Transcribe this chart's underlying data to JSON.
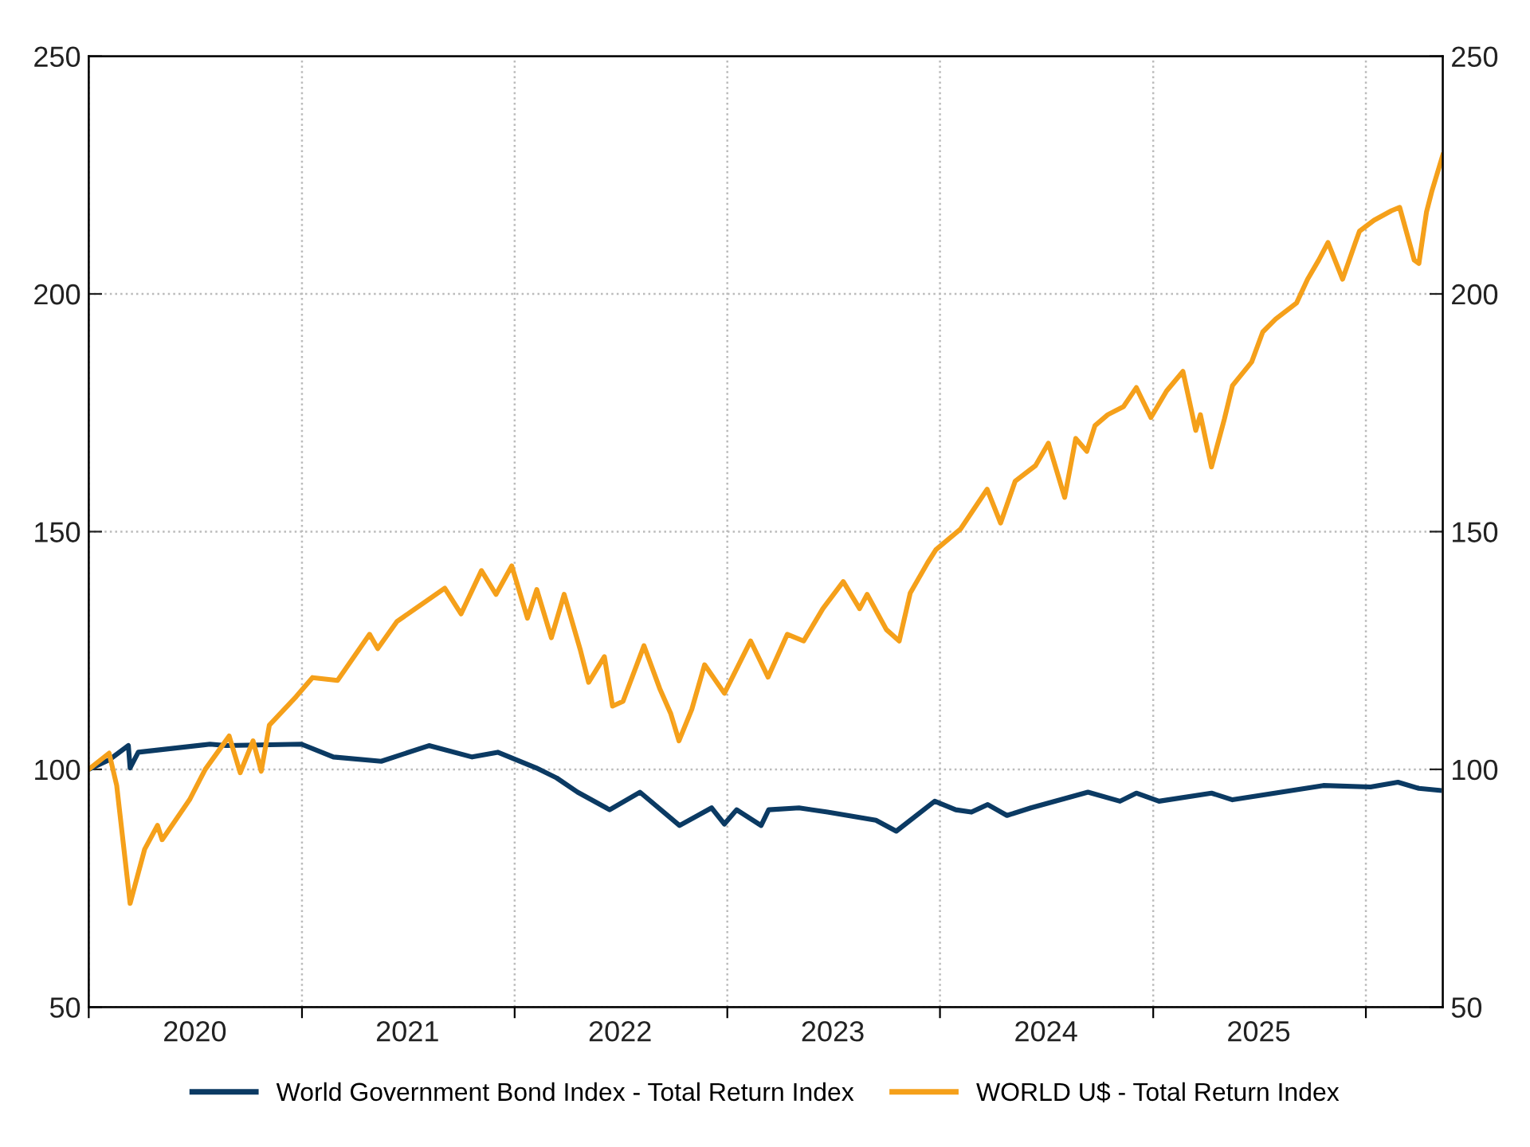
{
  "chart_data": {
    "type": "line",
    "xlim": [
      "2020-01-01",
      "2026-05-13"
    ],
    "xticks": [
      {
        "value": "2020-01-01",
        "label": null
      },
      {
        "value": "2020-07-01",
        "label": "2020"
      },
      {
        "value": "2021-01-01",
        "label": null
      },
      {
        "value": "2021-07-01",
        "label": "2021"
      },
      {
        "value": "2022-01-01",
        "label": null
      },
      {
        "value": "2022-07-01",
        "label": "2022"
      },
      {
        "value": "2023-01-01",
        "label": null
      },
      {
        "value": "2023-07-01",
        "label": "2023"
      },
      {
        "value": "2024-01-01",
        "label": null
      },
      {
        "value": "2024-07-01",
        "label": "2024"
      },
      {
        "value": "2025-01-01",
        "label": null
      },
      {
        "value": "2025-07-01",
        "label": "2025"
      },
      {
        "value": "2026-01-01",
        "label": null
      }
    ],
    "ylim": [
      50,
      250
    ],
    "yticks": [
      50,
      100,
      150,
      200,
      250
    ],
    "y2lim": [
      50,
      250
    ],
    "y2ticks": [
      50,
      100,
      150,
      200,
      250
    ],
    "grid": true,
    "legend": "bottom",
    "line_style": "solid",
    "marker": "none",
    "series": [
      {
        "name": "World Government Bond Index - Total Return Index",
        "color": "#0b3a63",
        "x": [
          "2020-01-01",
          "2020-02-05",
          "2020-03-09",
          "2020-03-12",
          "2020-03-26",
          "2020-07-27",
          "2020-08-24",
          "2020-12-31",
          "2021-02-24",
          "2021-05-17",
          "2021-08-07",
          "2021-10-20",
          "2021-12-03",
          "2022-02-07",
          "2022-03-14",
          "2022-04-19",
          "2022-06-13",
          "2022-08-04",
          "2022-10-11",
          "2022-12-05",
          "2022-12-27",
          "2023-01-17",
          "2023-02-28",
          "2023-03-13",
          "2023-05-04",
          "2023-06-22",
          "2023-09-13",
          "2023-10-18",
          "2023-12-23",
          "2024-01-28",
          "2024-02-24",
          "2024-03-23",
          "2024-04-25",
          "2024-06-05",
          "2024-09-11",
          "2024-11-05",
          "2024-12-03",
          "2025-01-11",
          "2025-04-11",
          "2025-05-17",
          "2025-10-20",
          "2026-01-09",
          "2026-02-25",
          "2026-04-02",
          "2026-05-07"
        ],
        "values": [
          100,
          102,
          105,
          100.3,
          103.6,
          105.3,
          105,
          105.3,
          102.6,
          101.7,
          105,
          102.6,
          103.6,
          100.3,
          98.2,
          95.2,
          91.5,
          95.2,
          88.2,
          91.9,
          88.5,
          91.5,
          88.2,
          91.5,
          91.9,
          91,
          89.3,
          87,
          93.3,
          91.5,
          91,
          92.6,
          90.3,
          91.9,
          95.2,
          93.3,
          95,
          93.3,
          95,
          93.6,
          96.6,
          96.3,
          97.3,
          96,
          95.6
        ]
      },
      {
        "name": "WORLD U$ - Total Return Index",
        "color": "#f5a01a",
        "x": [
          "2020-01-01",
          "2020-02-05",
          "2020-02-18",
          "2020-03-12",
          "2020-04-06",
          "2020-04-28",
          "2020-05-06",
          "2020-06-22",
          "2020-07-19",
          "2020-08-29",
          "2020-09-17",
          "2020-10-09",
          "2020-10-23",
          "2020-11-06",
          "2020-12-22",
          "2021-01-19",
          "2021-03-03",
          "2021-04-27",
          "2021-05-11",
          "2021-06-13",
          "2021-09-03",
          "2021-10-01",
          "2021-11-05",
          "2021-11-30",
          "2021-12-27",
          "2022-01-23",
          "2022-02-08",
          "2022-03-05",
          "2022-03-27",
          "2022-04-24",
          "2022-05-08",
          "2022-06-04",
          "2022-06-18",
          "2022-07-06",
          "2022-08-11",
          "2022-09-07",
          "2022-09-26",
          "2022-10-10",
          "2022-11-01",
          "2022-11-23",
          "2022-12-27",
          "2023-02-10",
          "2023-03-12",
          "2023-04-14",
          "2023-05-12",
          "2023-06-14",
          "2023-07-19",
          "2023-08-16",
          "2023-08-29",
          "2023-10-01",
          "2023-10-23",
          "2023-11-11",
          "2023-12-11",
          "2023-12-25",
          "2024-02-05",
          "2024-03-22",
          "2024-04-14",
          "2024-05-09",
          "2024-06-13",
          "2024-07-05",
          "2024-08-02",
          "2024-08-21",
          "2024-09-09",
          "2024-09-23",
          "2024-10-15",
          "2024-11-11",
          "2024-12-03",
          "2024-12-28",
          "2025-01-24",
          "2025-02-21",
          "2025-03-15",
          "2025-03-23",
          "2025-04-11",
          "2025-05-03",
          "2025-05-17",
          "2025-06-19",
          "2025-07-08",
          "2025-07-30",
          "2025-09-04",
          "2025-09-23",
          "2025-10-12",
          "2025-10-28",
          "2025-11-22",
          "2025-12-14",
          "2025-12-21",
          "2026-01-15",
          "2026-02-14",
          "2026-02-28",
          "2026-03-25",
          "2026-04-02",
          "2026-04-15",
          "2026-04-24",
          "2026-05-13"
        ],
        "values": [
          100,
          103.4,
          96.6,
          71.8,
          83.2,
          88.2,
          85.2,
          93.6,
          100,
          107,
          99.3,
          106,
          99.6,
          109.3,
          115.3,
          119.3,
          118.7,
          128.4,
          125.4,
          131.1,
          138.1,
          132.7,
          141.8,
          136.8,
          142.8,
          131.8,
          137.8,
          127.7,
          136.8,
          125,
          118.3,
          123.7,
          113.3,
          114.3,
          126,
          117,
          111.7,
          106,
          112.6,
          122,
          116,
          127,
          119.4,
          128.4,
          127,
          133.8,
          139.5,
          133.8,
          136.8,
          129.4,
          127,
          137.1,
          143.5,
          146.2,
          150.5,
          158.9,
          151.8,
          160.6,
          163.9,
          168.6,
          157.2,
          169.6,
          166.9,
          172.3,
          174.6,
          176.3,
          180.3,
          174,
          179.6,
          183.7,
          171.3,
          174.6,
          163.6,
          173.6,
          180.7,
          185.7,
          192,
          194.7,
          198.1,
          203.1,
          207.1,
          210.8,
          203.1,
          210.8,
          213.2,
          215.5,
          217.5,
          218.2,
          207.1,
          206.4,
          217.2,
          221.5,
          229.2
        ]
      }
    ]
  }
}
